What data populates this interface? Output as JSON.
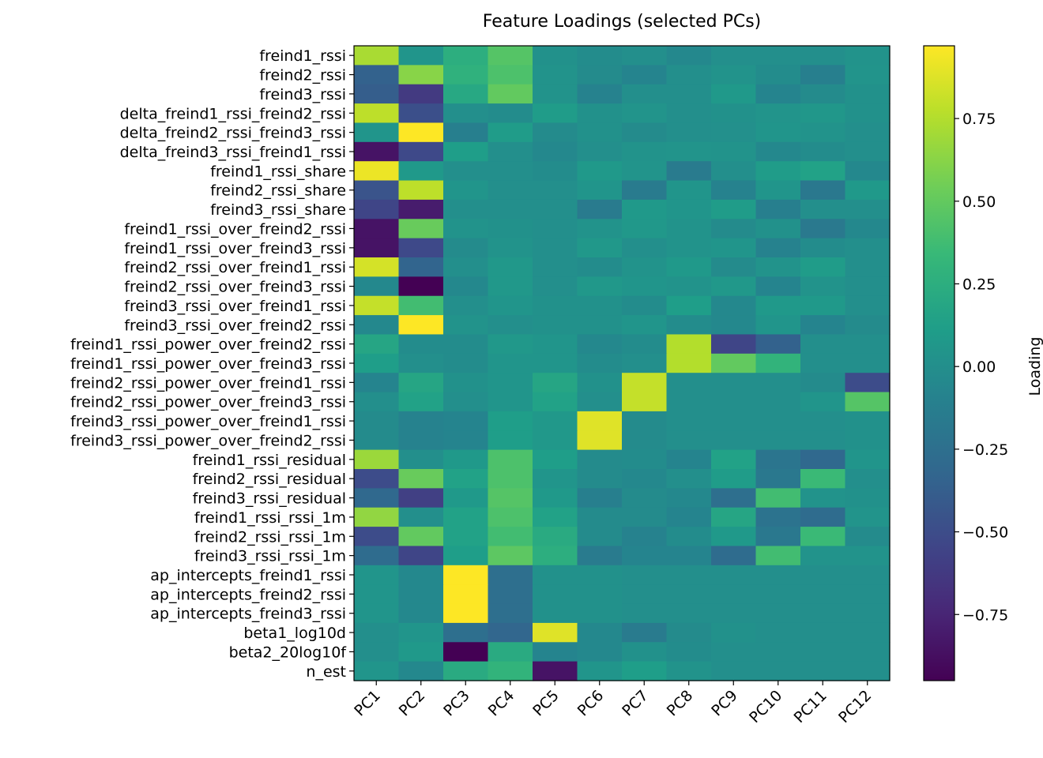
{
  "chart_data": {
    "type": "heatmap",
    "title": "Feature Loadings (selected PCs)",
    "colormap": "viridis",
    "colorbar_label": "Loading",
    "x": [
      "PC1",
      "PC2",
      "PC3",
      "PC4",
      "PC5",
      "PC6",
      "PC7",
      "PC8",
      "PC9",
      "PC10",
      "PC11",
      "PC12"
    ],
    "y": [
      "freind1_rssi",
      "freind2_rssi",
      "freind3_rssi",
      "delta_freind1_rssi_freind2_rssi",
      "delta_freind2_rssi_freind3_rssi",
      "delta_freind3_rssi_freind1_rssi",
      "freind1_rssi_share",
      "freind2_rssi_share",
      "freind3_rssi_share",
      "freind1_rssi_over_freind2_rssi",
      "freind1_rssi_over_freind3_rssi",
      "freind2_rssi_over_freind1_rssi",
      "freind2_rssi_over_freind3_rssi",
      "freind3_rssi_over_freind1_rssi",
      "freind3_rssi_over_freind2_rssi",
      "freind1_rssi_power_over_freind2_rssi",
      "freind1_rssi_power_over_freind3_rssi",
      "freind2_rssi_power_over_freind1_rssi",
      "freind2_rssi_power_over_freind3_rssi",
      "freind3_rssi_power_over_freind1_rssi",
      "freind3_rssi_power_over_freind2_rssi",
      "freind1_rssi_residual",
      "freind2_rssi_residual",
      "freind3_rssi_residual",
      "freind1_rssi_rssi_1m",
      "freind2_rssi_rssi_1m",
      "freind3_rssi_rssi_1m",
      "ap_intercepts_freind1_rssi",
      "ap_intercepts_freind2_rssi",
      "ap_intercepts_freind3_rssi",
      "beta1_log10d",
      "beta2_20log10f",
      "n_est"
    ],
    "values": [
      [
        0.72,
        0.05,
        0.25,
        0.45,
        0.02,
        -0.02,
        0.0,
        -0.05,
        0.0,
        0.0,
        0.0,
        0.03
      ],
      [
        -0.35,
        0.62,
        0.28,
        0.42,
        0.03,
        -0.03,
        -0.08,
        0.0,
        0.03,
        -0.02,
        -0.12,
        0.04
      ],
      [
        -0.38,
        -0.62,
        0.2,
        0.5,
        0.03,
        -0.1,
        0.0,
        0.0,
        0.08,
        -0.08,
        -0.03,
        0.02
      ],
      [
        0.78,
        -0.48,
        0.0,
        -0.02,
        0.1,
        0.02,
        0.04,
        0.0,
        0.02,
        0.04,
        0.06,
        0.02
      ],
      [
        0.05,
        0.97,
        -0.12,
        0.1,
        -0.03,
        0.02,
        -0.03,
        0.0,
        0.01,
        0.05,
        0.03,
        0.0
      ],
      [
        -0.85,
        -0.52,
        0.12,
        0.0,
        -0.05,
        0.0,
        0.03,
        0.04,
        0.03,
        -0.05,
        -0.02,
        0.0
      ],
      [
        0.92,
        0.08,
        0.0,
        0.0,
        -0.02,
        0.08,
        0.04,
        -0.15,
        0.0,
        0.1,
        0.15,
        -0.05
      ],
      [
        -0.45,
        0.78,
        0.05,
        0.0,
        0.0,
        0.05,
        -0.15,
        0.05,
        -0.1,
        0.05,
        -0.18,
        0.08
      ],
      [
        -0.55,
        -0.8,
        0.0,
        0.0,
        0.0,
        -0.15,
        0.08,
        0.05,
        0.1,
        -0.12,
        0.0,
        0.0
      ],
      [
        -0.85,
        0.52,
        0.03,
        0.02,
        0.0,
        0.03,
        0.07,
        0.03,
        -0.03,
        0.02,
        -0.17,
        -0.05
      ],
      [
        -0.85,
        -0.52,
        -0.03,
        0.03,
        0.0,
        0.07,
        0.0,
        0.03,
        0.05,
        -0.1,
        -0.02,
        0.0
      ],
      [
        0.85,
        -0.33,
        0.0,
        0.07,
        0.0,
        -0.02,
        0.03,
        0.08,
        -0.03,
        0.03,
        0.1,
        0.0
      ],
      [
        -0.05,
        -0.95,
        -0.05,
        0.07,
        0.0,
        0.07,
        0.05,
        0.03,
        0.07,
        -0.08,
        0.03,
        0.0
      ],
      [
        0.8,
        0.38,
        0.0,
        0.05,
        0.02,
        0.02,
        -0.02,
        0.12,
        -0.05,
        0.08,
        0.08,
        0.0
      ],
      [
        -0.05,
        0.97,
        0.03,
        0.0,
        0.02,
        0.02,
        0.05,
        -0.02,
        -0.05,
        0.05,
        -0.08,
        -0.03
      ],
      [
        0.18,
        -0.02,
        -0.02,
        0.07,
        0.05,
        -0.05,
        -0.02,
        0.75,
        -0.55,
        -0.35,
        0.0,
        0.0
      ],
      [
        0.12,
        0.0,
        -0.02,
        0.05,
        0.05,
        -0.02,
        0.0,
        0.75,
        0.5,
        0.3,
        0.0,
        0.0
      ],
      [
        -0.08,
        0.18,
        0.02,
        0.05,
        0.18,
        0.02,
        0.8,
        0.0,
        0.0,
        0.0,
        -0.03,
        -0.5
      ],
      [
        0.0,
        0.15,
        0.0,
        0.05,
        0.15,
        0.0,
        0.8,
        0.0,
        0.0,
        0.0,
        0.05,
        0.45
      ],
      [
        -0.03,
        -0.1,
        -0.08,
        0.12,
        0.07,
        0.88,
        -0.03,
        0.0,
        0.0,
        0.0,
        0.0,
        0.02
      ],
      [
        -0.03,
        -0.1,
        -0.08,
        0.12,
        0.07,
        0.88,
        -0.03,
        0.0,
        0.0,
        0.0,
        0.0,
        0.02
      ],
      [
        0.68,
        0.0,
        0.08,
        0.42,
        0.12,
        -0.03,
        -0.02,
        -0.08,
        0.15,
        -0.2,
        -0.3,
        0.05
      ],
      [
        -0.5,
        0.52,
        0.15,
        0.42,
        0.05,
        -0.03,
        -0.05,
        0.0,
        0.1,
        -0.18,
        0.35,
        0.0
      ],
      [
        -0.3,
        -0.58,
        0.08,
        0.45,
        0.08,
        -0.12,
        -0.03,
        -0.05,
        -0.25,
        0.38,
        0.03,
        0.02
      ],
      [
        0.65,
        0.0,
        0.15,
        0.42,
        0.15,
        -0.03,
        -0.03,
        -0.08,
        0.18,
        -0.22,
        -0.28,
        0.04
      ],
      [
        -0.5,
        0.5,
        0.15,
        0.38,
        0.22,
        -0.03,
        -0.1,
        -0.02,
        0.08,
        -0.18,
        0.35,
        -0.03
      ],
      [
        -0.28,
        -0.55,
        0.12,
        0.48,
        0.25,
        -0.15,
        -0.08,
        -0.08,
        -0.28,
        0.38,
        0.03,
        0.03
      ],
      [
        0.05,
        -0.05,
        0.97,
        -0.25,
        0.02,
        0.02,
        0.0,
        0.0,
        0.0,
        0.0,
        0.0,
        0.0
      ],
      [
        0.05,
        -0.05,
        0.97,
        -0.25,
        0.02,
        0.02,
        0.0,
        0.0,
        0.0,
        0.0,
        0.0,
        0.0
      ],
      [
        0.05,
        -0.05,
        0.97,
        -0.25,
        0.02,
        0.02,
        0.0,
        0.0,
        0.0,
        0.0,
        0.0,
        0.0
      ],
      [
        0.0,
        0.05,
        -0.25,
        -0.32,
        0.88,
        -0.05,
        -0.15,
        -0.03,
        0.02,
        0.0,
        0.0,
        0.0
      ],
      [
        0.0,
        0.08,
        -0.95,
        0.22,
        -0.08,
        -0.05,
        0.02,
        -0.02,
        0.0,
        0.0,
        0.0,
        0.0
      ],
      [
        0.05,
        -0.05,
        0.22,
        0.3,
        -0.85,
        0.05,
        0.12,
        0.03,
        0.0,
        0.0,
        0.0,
        0.0
      ]
    ],
    "zlim": [
      -0.95,
      0.97
    ],
    "zticks": [
      {
        "value": -0.75,
        "label": "−0.75"
      },
      {
        "value": -0.5,
        "label": "−0.50"
      },
      {
        "value": -0.25,
        "label": "−0.25"
      },
      {
        "value": 0,
        "label": "0.00"
      },
      0.25,
      {
        "value": 0.5,
        "label": "0.50"
      },
      0.75
    ]
  }
}
